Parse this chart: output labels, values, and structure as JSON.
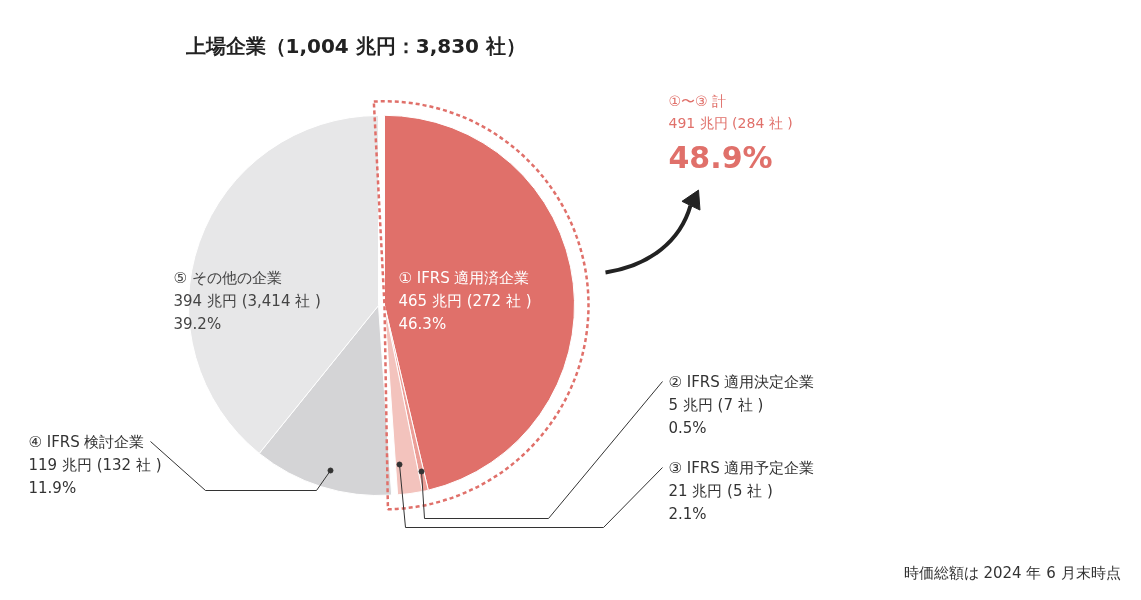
{
  "chart_data": {
    "type": "pie",
    "title": "上場企業（1,004 兆円：3,830 社）",
    "categories": [
      "① IFRS 適用済企業",
      "② IFRS 適用決定企業",
      "③ IFRS 適用予定企業",
      "④ IFRS 検討企業",
      "⑤ その他の企業"
    ],
    "values": [
      46.3,
      0.5,
      2.1,
      11.9,
      39.2
    ],
    "colors": [
      "#e0706a",
      "#ec9e97",
      "#f3c3bd",
      "#d4d4d6",
      "#e7e7e8"
    ],
    "value_labels": [
      "465 兆円 (272 社 )\n46.3%",
      "5 兆円 (7 社 )\n0.5%",
      "21 兆円 (5 社 )\n2.1%",
      "119 兆円 (132 社 )\n11.9%",
      "394 兆円 (3,414 社 )\n39.2%"
    ],
    "annotations": [
      "①〜③ 計",
      "491 兆円 (284 社 )",
      "48.9%",
      "時価総額は 2024 年 6 月末時点"
    ]
  }
}
